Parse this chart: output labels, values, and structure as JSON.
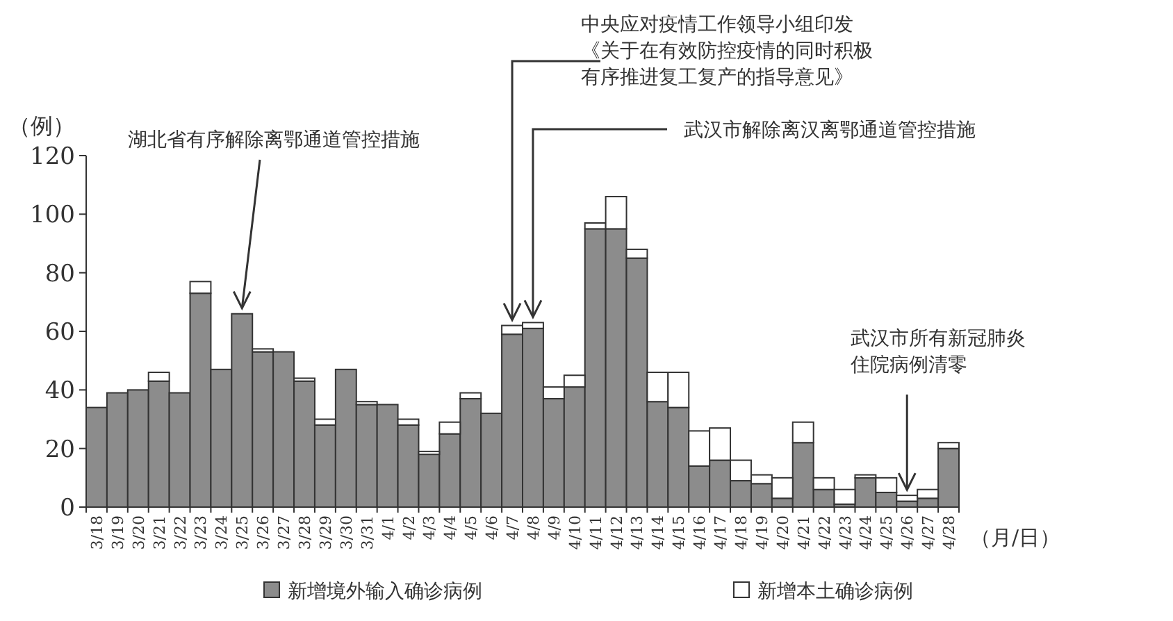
{
  "chart_data": {
    "type": "bar",
    "stacked": true,
    "ylabel": "（例）",
    "xlabel": "（月/日）",
    "categories": [
      "3/18",
      "3/19",
      "3/20",
      "3/21",
      "3/22",
      "3/23",
      "3/24",
      "3/25",
      "3/26",
      "3/27",
      "3/28",
      "3/29",
      "3/30",
      "3/31",
      "4/1",
      "4/2",
      "4/3",
      "4/4",
      "4/5",
      "4/6",
      "4/7",
      "4/8",
      "4/9",
      "4/10",
      "4/11",
      "4/12",
      "4/13",
      "4/14",
      "4/15",
      "4/16",
      "4/17",
      "4/18",
      "4/19",
      "4/20",
      "4/21",
      "4/22",
      "4/23",
      "4/24",
      "4/25",
      "4/26",
      "4/27",
      "4/28"
    ],
    "series": [
      {
        "name": "新增境外输入确诊病例",
        "color": "#8c8c8c",
        "values": [
          34,
          39,
          40,
          43,
          39,
          73,
          47,
          66,
          53,
          53,
          43,
          28,
          47,
          35,
          35,
          28,
          18,
          25,
          37,
          32,
          59,
          61,
          37,
          41,
          95,
          95,
          85,
          36,
          34,
          14,
          16,
          9,
          8,
          3,
          22,
          6,
          1,
          10,
          5,
          2,
          3,
          20
        ]
      },
      {
        "name": "新增本土确诊病例",
        "color": "#ffffff",
        "values": [
          0,
          0,
          0,
          3,
          0,
          4,
          0,
          0,
          1,
          0,
          1,
          2,
          0,
          1,
          0,
          2,
          1,
          4,
          2,
          0,
          3,
          2,
          4,
          4,
          2,
          11,
          3,
          10,
          12,
          12,
          11,
          7,
          3,
          7,
          7,
          4,
          5,
          1,
          5,
          2,
          3,
          2
        ]
      }
    ],
    "ylim": [
      0,
      120
    ],
    "yticks": [
      0,
      20,
      40,
      60,
      80,
      100,
      120
    ],
    "grid": false,
    "legend": "bottom",
    "annotations": [
      {
        "text": "湖北省有序解除离鄂通道管控措施",
        "x": "3/25",
        "y": 66
      },
      {
        "text": "中央应对疫情工作领导小组印发《关于在有效防控疫情的同时积极有序推进复工复产的指导意见》",
        "x": "4/7",
        "y": 62
      },
      {
        "text": "武汉市解除离汉离鄂通道管控措施",
        "x": "4/8",
        "y": 63
      },
      {
        "text": "武汉市所有新冠肺炎住院病例清零",
        "x": "4/26",
        "y": 4
      }
    ]
  }
}
